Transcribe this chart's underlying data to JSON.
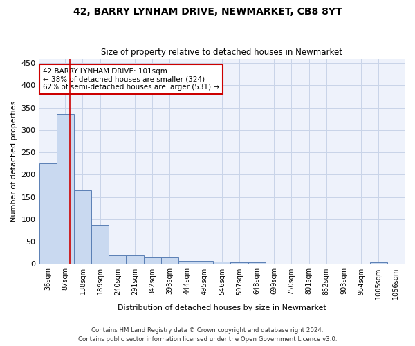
{
  "title1": "42, BARRY LYNHAM DRIVE, NEWMARKET, CB8 8YT",
  "title2": "Size of property relative to detached houses in Newmarket",
  "xlabel": "Distribution of detached houses by size in Newmarket",
  "ylabel": "Number of detached properties",
  "bar_values": [
    225,
    335,
    165,
    87,
    20,
    20,
    15,
    15,
    7,
    7,
    5,
    4,
    3,
    0,
    0,
    0,
    0,
    0,
    0,
    3,
    0
  ],
  "bin_labels": [
    "36sqm",
    "87sqm",
    "138sqm",
    "189sqm",
    "240sqm",
    "291sqm",
    "342sqm",
    "393sqm",
    "444sqm",
    "495sqm",
    "546sqm",
    "597sqm",
    "648sqm",
    "699sqm",
    "750sqm",
    "801sqm",
    "852sqm",
    "903sqm",
    "954sqm",
    "1005sqm",
    "1056sqm"
  ],
  "bar_color": "#c9d9f0",
  "bar_edge_color": "#5a7fb5",
  "grid_color": "#c8d4e8",
  "background_color": "#eef2fb",
  "red_line_color": "#cc0000",
  "annotation_text": "42 BARRY LYNHAM DRIVE: 101sqm\n← 38% of detached houses are smaller (324)\n62% of semi-detached houses are larger (531) →",
  "annotation_box_color": "#ffffff",
  "annotation_box_edge": "#cc0000",
  "ylim": [
    0,
    460
  ],
  "yticks": [
    0,
    50,
    100,
    150,
    200,
    250,
    300,
    350,
    400,
    450
  ],
  "footer1": "Contains HM Land Registry data © Crown copyright and database right 2024.",
  "footer2": "Contains public sector information licensed under the Open Government Licence v3.0."
}
